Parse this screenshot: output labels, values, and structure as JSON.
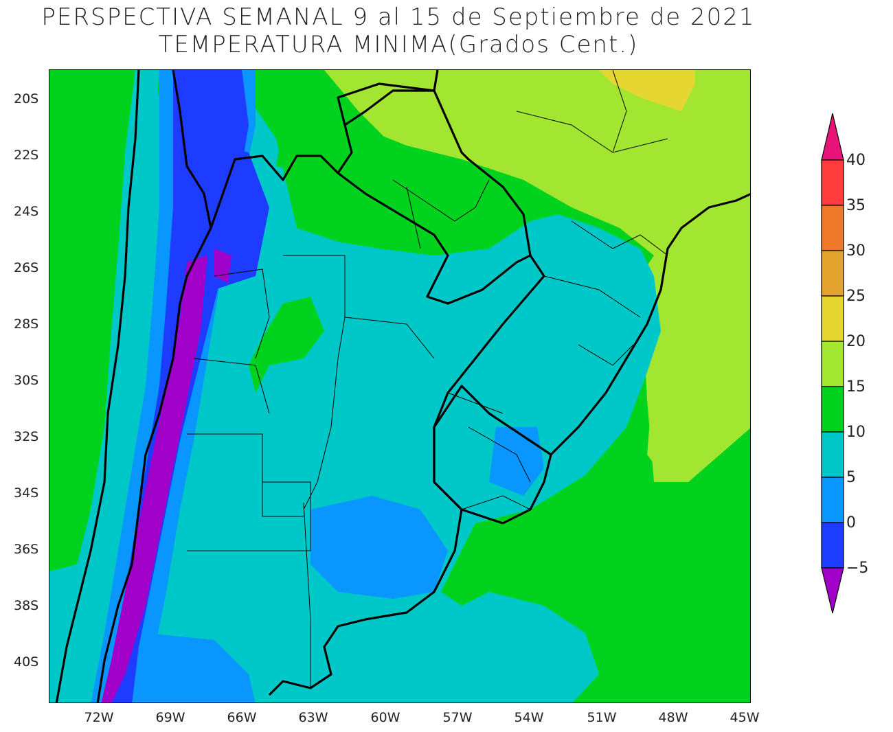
{
  "title": {
    "line1": "PERSPECTIVA SEMANAL  9 al 15 de Septiembre de 2021",
    "line2": "TEMPERATURA MINIMA(Grados Cent.)"
  },
  "map": {
    "region": "Southern South America",
    "lat_labels": [
      "20S",
      "22S",
      "24S",
      "26S",
      "28S",
      "30S",
      "32S",
      "34S",
      "36S",
      "38S",
      "40S"
    ],
    "lon_labels": [
      "72W",
      "69W",
      "66W",
      "63W",
      "60W",
      "57W",
      "54W",
      "51W",
      "48W",
      "45W"
    ]
  },
  "colorbar": {
    "labels": [
      "40",
      "35",
      "30",
      "25",
      "20",
      "15",
      "10",
      "5",
      "0",
      "−5"
    ],
    "colors": {
      "gt40": "#e8147a",
      "35_40": "#ff3b3b",
      "30_35": "#f0782a",
      "25_30": "#e3a32e",
      "20_25": "#e6d632",
      "15_20": "#a2e632",
      "10_15": "#00d21e",
      "5_10": "#00c8c8",
      "0_5": "#0a96ff",
      "m5_0": "#1e3cff",
      "lt_m5": "#a000c8"
    }
  }
}
